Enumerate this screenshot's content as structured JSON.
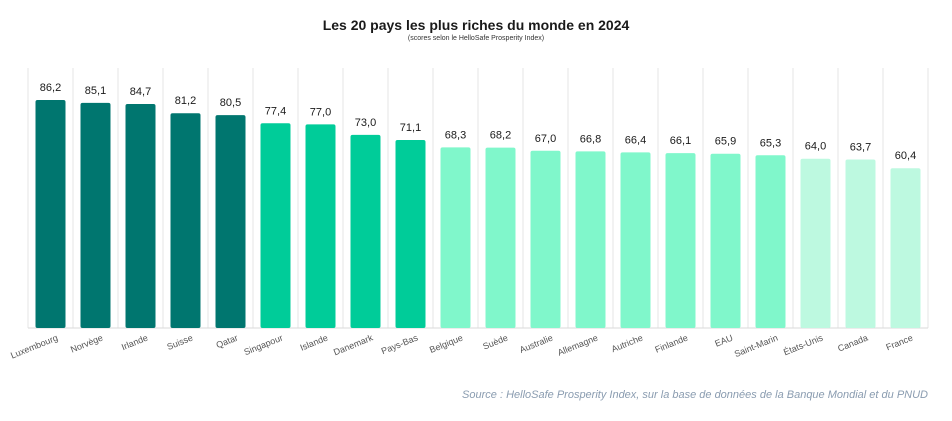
{
  "chart_data": {
    "type": "bar",
    "title": "Les 20 pays les plus riches du monde en 2024",
    "subtitle": "(scores selon le HelloSafe Prosperity Index)",
    "source": "Source : HelloSafe Prosperity Index, sur la base de données de la Banque Mondial et du PNUD",
    "categories": [
      "Luxembourg",
      "Norvège",
      "Irlande",
      "Suisse",
      "Qatar",
      "Singapour",
      "Islande",
      "Danemark",
      "Pays-Bas",
      "Belgique",
      "Suède",
      "Australie",
      "Allemagne",
      "Autriche",
      "Finlande",
      "EAU",
      "Saint-Marin",
      "États-Unis",
      "Canada",
      "France"
    ],
    "values": [
      86.2,
      85.1,
      84.7,
      81.2,
      80.5,
      77.4,
      77.0,
      73.0,
      71.1,
      68.3,
      68.2,
      67.0,
      66.8,
      66.4,
      66.1,
      65.9,
      65.3,
      64.0,
      63.7,
      60.4
    ],
    "value_labels": [
      "86,2",
      "85,1",
      "84,7",
      "81,2",
      "80,5",
      "77,4",
      "77,0",
      "73,0",
      "71,1",
      "68,3",
      "68,2",
      "67,0",
      "66,8",
      "66,4",
      "66,1",
      "65,9",
      "65,3",
      "64,0",
      "63,7",
      "60,4"
    ],
    "tiers": [
      {
        "color": "#00766f",
        "indices": [
          0,
          1,
          2,
          3,
          4
        ]
      },
      {
        "color": "#00cc99",
        "indices": [
          5,
          6,
          7,
          8
        ]
      },
      {
        "color": "#80f7cb",
        "indices": [
          9,
          10,
          11,
          12,
          13,
          14,
          15,
          16
        ]
      },
      {
        "color": "#bdf9e0",
        "indices": [
          17,
          18,
          19
        ]
      }
    ],
    "ylim": [
      0,
      90
    ],
    "grid": "vertical",
    "legend": "none"
  }
}
